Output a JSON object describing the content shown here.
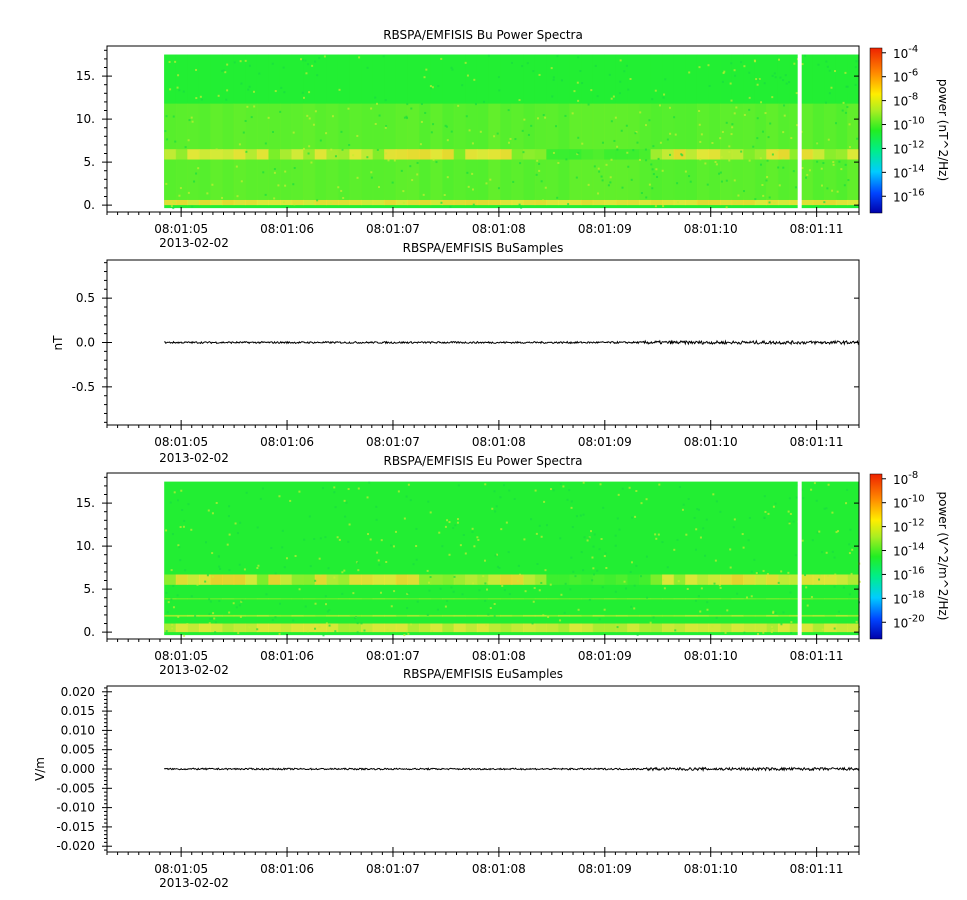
{
  "figure": {
    "colors": {
      "background": "#ffffff",
      "axis": "#000000",
      "spectrogram_base": "#22ee33",
      "band": "#e8e83a",
      "trace": "#000000",
      "data_gap": "#ffffff"
    }
  },
  "chart_data": [
    {
      "id": "bu-spectra",
      "type": "heatmap",
      "title": "RBSPA/EMFISIS  Bu Power Spectra",
      "xlabel": "",
      "ylabel": "",
      "x_tick_labels": [
        "08:01:05",
        "08:01:06",
        "08:01:07",
        "08:01:08",
        "08:01:09",
        "08:01:10",
        "08:01:11"
      ],
      "x_date_label": "2013-02-02",
      "x_range": [
        "08:01:04.3",
        "08:01:11.4"
      ],
      "y_ticks": [
        0,
        5,
        10,
        15
      ],
      "y_tick_labels": [
        "0.",
        "5.",
        "10.",
        "15."
      ],
      "ylim": [
        -0.8,
        18.5
      ],
      "data_extent": {
        "x_start": "08:01:04.84",
        "x_end": "08:01:11.4",
        "y_top": 17.5
      },
      "gap_at": "08:01:10.84",
      "colorbar": {
        "label": "power (nT^2/Hz)",
        "tick_labels": [
          {
            "base": "10",
            "exp": "-4"
          },
          {
            "base": "10",
            "exp": "-6"
          },
          {
            "base": "10",
            "exp": "-8"
          },
          {
            "base": "10",
            "exp": "-10"
          },
          {
            "base": "10",
            "exp": "-12"
          },
          {
            "base": "10",
            "exp": "-14"
          },
          {
            "base": "10",
            "exp": "-16"
          }
        ],
        "log_range": [
          -17.4,
          -3.6
        ],
        "tick_values": [
          -4,
          -6,
          -8,
          -10,
          -12,
          -14,
          -16
        ]
      },
      "bands": [
        {
          "y_low": 11.8,
          "y_high": 17.5,
          "level": 0.0
        },
        {
          "y_low": 0.6,
          "y_high": 11.8,
          "level": 0.18
        },
        {
          "y_low": 0.0,
          "y_high": 0.6,
          "level": 0.55
        },
        {
          "y_low": 5.3,
          "y_high": 6.5,
          "level": 0.5
        }
      ]
    },
    {
      "id": "bu-samples",
      "type": "line",
      "title": "RBSPA/EMFISIS  BuSamples",
      "xlabel": "",
      "ylabel": "nT",
      "x_tick_labels": [
        "08:01:05",
        "08:01:06",
        "08:01:07",
        "08:01:08",
        "08:01:09",
        "08:01:10",
        "08:01:11"
      ],
      "x_date_label": "2013-02-02",
      "y_ticks": [
        -0.5,
        0.0,
        0.5
      ],
      "y_tick_labels": [
        "-0.5",
        "0.0",
        "0.5"
      ],
      "ylim": [
        -0.93,
        0.93
      ],
      "series": [
        {
          "x_start": "08:01:04.84",
          "x_end": "08:01:11.4",
          "value": 0.0,
          "noise_amplitude": 0.01
        }
      ]
    },
    {
      "id": "eu-spectra",
      "type": "heatmap",
      "title": "RBSPA/EMFISIS  Eu Power Spectra",
      "xlabel": "",
      "ylabel": "",
      "x_tick_labels": [
        "08:01:05",
        "08:01:06",
        "08:01:07",
        "08:01:08",
        "08:01:09",
        "08:01:10",
        "08:01:11"
      ],
      "x_date_label": "2013-02-02",
      "y_ticks": [
        0,
        5,
        10,
        15
      ],
      "y_tick_labels": [
        "0.",
        "5.",
        "10.",
        "15."
      ],
      "ylim": [
        -0.8,
        18.5
      ],
      "data_extent": {
        "x_start": "08:01:04.84",
        "x_end": "08:01:11.4",
        "y_top": 17.5
      },
      "gap_at": "08:01:10.84",
      "colorbar": {
        "label": "power (V^2/m^2/Hz)",
        "tick_labels": [
          {
            "base": "10",
            "exp": "-8"
          },
          {
            "base": "10",
            "exp": "-10"
          },
          {
            "base": "10",
            "exp": "-12"
          },
          {
            "base": "10",
            "exp": "-14"
          },
          {
            "base": "10",
            "exp": "-16"
          },
          {
            "base": "10",
            "exp": "-18"
          },
          {
            "base": "10",
            "exp": "-20"
          }
        ],
        "log_range": [
          -21.4,
          -7.6
        ],
        "tick_values": [
          -8,
          -10,
          -12,
          -14,
          -16,
          -18,
          -20
        ]
      },
      "bands": [
        {
          "y_low": 0.0,
          "y_high": 1.0,
          "level": 0.45
        },
        {
          "y_low": 5.5,
          "y_high": 6.7,
          "level": 0.55
        },
        {
          "y_low": 1.8,
          "y_high": 2.0,
          "level": 0.35
        },
        {
          "y_low": 3.8,
          "y_high": 3.95,
          "level": 0.25
        }
      ]
    },
    {
      "id": "eu-samples",
      "type": "line",
      "title": "RBSPA/EMFISIS  EuSamples",
      "xlabel": "",
      "ylabel": "V/m",
      "x_tick_labels": [
        "08:01:05",
        "08:01:06",
        "08:01:07",
        "08:01:08",
        "08:01:09",
        "08:01:10",
        "08:01:11"
      ],
      "x_date_label": "2013-02-02",
      "y_ticks": [
        -0.02,
        -0.015,
        -0.01,
        -0.005,
        0.0,
        0.005,
        0.01,
        0.015,
        0.02
      ],
      "y_tick_labels": [
        "-0.020",
        "-0.015",
        "-0.010",
        "-0.005",
        "0.000",
        "0.005",
        "0.010",
        "0.015",
        "0.020"
      ],
      "ylim": [
        -0.0215,
        0.0215
      ],
      "series": [
        {
          "x_start": "08:01:04.84",
          "x_end": "08:01:11.4",
          "value": 0.0,
          "noise_amplitude": 0.0002
        }
      ]
    }
  ]
}
